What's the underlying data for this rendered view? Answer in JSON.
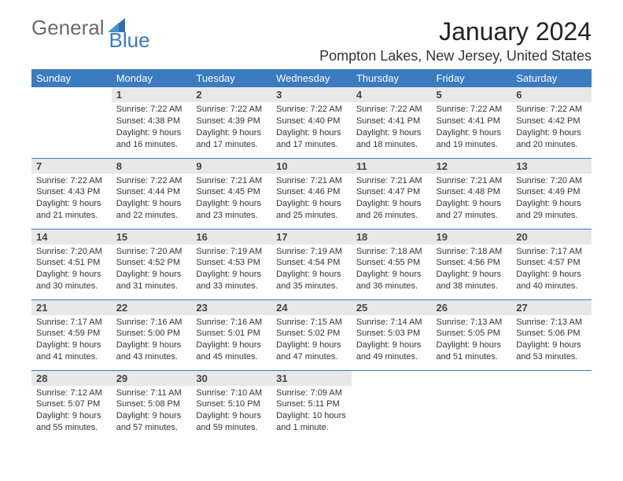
{
  "logo": {
    "text1": "General",
    "text2": "Blue"
  },
  "title": "January 2024",
  "location": "Pompton Lakes, New Jersey, United States",
  "colors": {
    "header_bg": "#3b7bbf",
    "header_fg": "#ffffff",
    "daynum_bg": "#e8e8e8",
    "row_border": "#3b7bbf",
    "body_text": "#333333",
    "logo_gray": "#6b6b6b",
    "logo_blue": "#3b7bbf"
  },
  "typography": {
    "title_fontsize": 32,
    "location_fontsize": 18,
    "header_fontsize": 13,
    "daynum_fontsize": 13,
    "cell_fontsize": 11
  },
  "weekdays": [
    "Sunday",
    "Monday",
    "Tuesday",
    "Wednesday",
    "Thursday",
    "Friday",
    "Saturday"
  ],
  "weeks": [
    [
      null,
      {
        "n": "1",
        "sr": "Sunrise: 7:22 AM",
        "ss": "Sunset: 4:38 PM",
        "d1": "Daylight: 9 hours",
        "d2": "and 16 minutes."
      },
      {
        "n": "2",
        "sr": "Sunrise: 7:22 AM",
        "ss": "Sunset: 4:39 PM",
        "d1": "Daylight: 9 hours",
        "d2": "and 17 minutes."
      },
      {
        "n": "3",
        "sr": "Sunrise: 7:22 AM",
        "ss": "Sunset: 4:40 PM",
        "d1": "Daylight: 9 hours",
        "d2": "and 17 minutes."
      },
      {
        "n": "4",
        "sr": "Sunrise: 7:22 AM",
        "ss": "Sunset: 4:41 PM",
        "d1": "Daylight: 9 hours",
        "d2": "and 18 minutes."
      },
      {
        "n": "5",
        "sr": "Sunrise: 7:22 AM",
        "ss": "Sunset: 4:41 PM",
        "d1": "Daylight: 9 hours",
        "d2": "and 19 minutes."
      },
      {
        "n": "6",
        "sr": "Sunrise: 7:22 AM",
        "ss": "Sunset: 4:42 PM",
        "d1": "Daylight: 9 hours",
        "d2": "and 20 minutes."
      }
    ],
    [
      {
        "n": "7",
        "sr": "Sunrise: 7:22 AM",
        "ss": "Sunset: 4:43 PM",
        "d1": "Daylight: 9 hours",
        "d2": "and 21 minutes."
      },
      {
        "n": "8",
        "sr": "Sunrise: 7:22 AM",
        "ss": "Sunset: 4:44 PM",
        "d1": "Daylight: 9 hours",
        "d2": "and 22 minutes."
      },
      {
        "n": "9",
        "sr": "Sunrise: 7:21 AM",
        "ss": "Sunset: 4:45 PM",
        "d1": "Daylight: 9 hours",
        "d2": "and 23 minutes."
      },
      {
        "n": "10",
        "sr": "Sunrise: 7:21 AM",
        "ss": "Sunset: 4:46 PM",
        "d1": "Daylight: 9 hours",
        "d2": "and 25 minutes."
      },
      {
        "n": "11",
        "sr": "Sunrise: 7:21 AM",
        "ss": "Sunset: 4:47 PM",
        "d1": "Daylight: 9 hours",
        "d2": "and 26 minutes."
      },
      {
        "n": "12",
        "sr": "Sunrise: 7:21 AM",
        "ss": "Sunset: 4:48 PM",
        "d1": "Daylight: 9 hours",
        "d2": "and 27 minutes."
      },
      {
        "n": "13",
        "sr": "Sunrise: 7:20 AM",
        "ss": "Sunset: 4:49 PM",
        "d1": "Daylight: 9 hours",
        "d2": "and 29 minutes."
      }
    ],
    [
      {
        "n": "14",
        "sr": "Sunrise: 7:20 AM",
        "ss": "Sunset: 4:51 PM",
        "d1": "Daylight: 9 hours",
        "d2": "and 30 minutes."
      },
      {
        "n": "15",
        "sr": "Sunrise: 7:20 AM",
        "ss": "Sunset: 4:52 PM",
        "d1": "Daylight: 9 hours",
        "d2": "and 31 minutes."
      },
      {
        "n": "16",
        "sr": "Sunrise: 7:19 AM",
        "ss": "Sunset: 4:53 PM",
        "d1": "Daylight: 9 hours",
        "d2": "and 33 minutes."
      },
      {
        "n": "17",
        "sr": "Sunrise: 7:19 AM",
        "ss": "Sunset: 4:54 PM",
        "d1": "Daylight: 9 hours",
        "d2": "and 35 minutes."
      },
      {
        "n": "18",
        "sr": "Sunrise: 7:18 AM",
        "ss": "Sunset: 4:55 PM",
        "d1": "Daylight: 9 hours",
        "d2": "and 36 minutes."
      },
      {
        "n": "19",
        "sr": "Sunrise: 7:18 AM",
        "ss": "Sunset: 4:56 PM",
        "d1": "Daylight: 9 hours",
        "d2": "and 38 minutes."
      },
      {
        "n": "20",
        "sr": "Sunrise: 7:17 AM",
        "ss": "Sunset: 4:57 PM",
        "d1": "Daylight: 9 hours",
        "d2": "and 40 minutes."
      }
    ],
    [
      {
        "n": "21",
        "sr": "Sunrise: 7:17 AM",
        "ss": "Sunset: 4:59 PM",
        "d1": "Daylight: 9 hours",
        "d2": "and 41 minutes."
      },
      {
        "n": "22",
        "sr": "Sunrise: 7:16 AM",
        "ss": "Sunset: 5:00 PM",
        "d1": "Daylight: 9 hours",
        "d2": "and 43 minutes."
      },
      {
        "n": "23",
        "sr": "Sunrise: 7:16 AM",
        "ss": "Sunset: 5:01 PM",
        "d1": "Daylight: 9 hours",
        "d2": "and 45 minutes."
      },
      {
        "n": "24",
        "sr": "Sunrise: 7:15 AM",
        "ss": "Sunset: 5:02 PM",
        "d1": "Daylight: 9 hours",
        "d2": "and 47 minutes."
      },
      {
        "n": "25",
        "sr": "Sunrise: 7:14 AM",
        "ss": "Sunset: 5:03 PM",
        "d1": "Daylight: 9 hours",
        "d2": "and 49 minutes."
      },
      {
        "n": "26",
        "sr": "Sunrise: 7:13 AM",
        "ss": "Sunset: 5:05 PM",
        "d1": "Daylight: 9 hours",
        "d2": "and 51 minutes."
      },
      {
        "n": "27",
        "sr": "Sunrise: 7:13 AM",
        "ss": "Sunset: 5:06 PM",
        "d1": "Daylight: 9 hours",
        "d2": "and 53 minutes."
      }
    ],
    [
      {
        "n": "28",
        "sr": "Sunrise: 7:12 AM",
        "ss": "Sunset: 5:07 PM",
        "d1": "Daylight: 9 hours",
        "d2": "and 55 minutes."
      },
      {
        "n": "29",
        "sr": "Sunrise: 7:11 AM",
        "ss": "Sunset: 5:08 PM",
        "d1": "Daylight: 9 hours",
        "d2": "and 57 minutes."
      },
      {
        "n": "30",
        "sr": "Sunrise: 7:10 AM",
        "ss": "Sunset: 5:10 PM",
        "d1": "Daylight: 9 hours",
        "d2": "and 59 minutes."
      },
      {
        "n": "31",
        "sr": "Sunrise: 7:09 AM",
        "ss": "Sunset: 5:11 PM",
        "d1": "Daylight: 10 hours",
        "d2": "and 1 minute."
      },
      null,
      null,
      null
    ]
  ]
}
